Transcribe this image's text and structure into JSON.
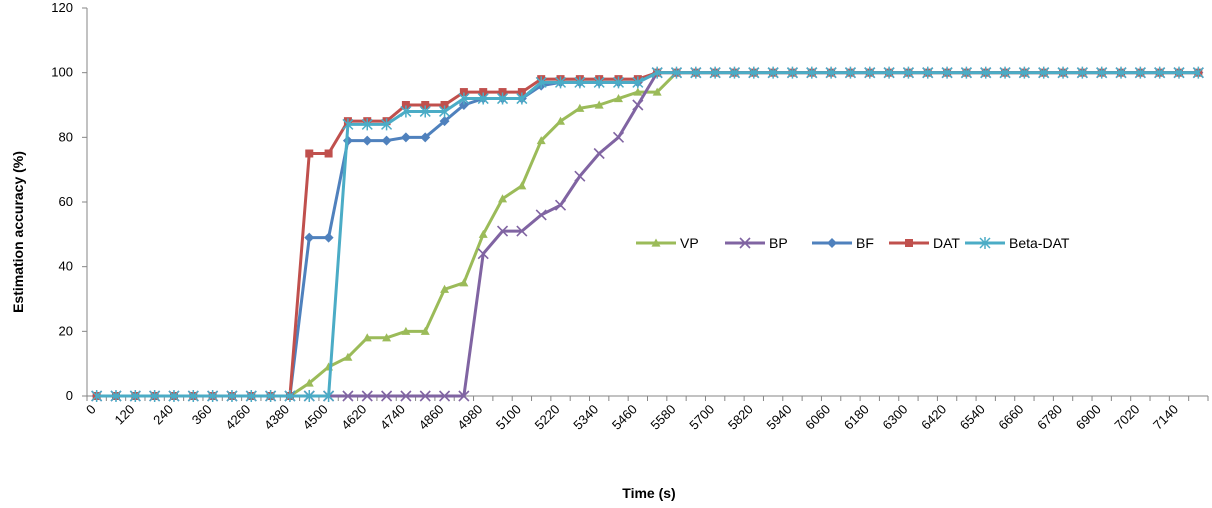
{
  "chart_data": {
    "type": "line",
    "xlabel": "Time (s)",
    "ylabel": "Estimation  accuracy (%)",
    "ylim": [
      0,
      120
    ],
    "yticks": [
      "0",
      "20",
      "40",
      "60",
      "80",
      "100",
      "120"
    ],
    "grid": false,
    "legend_position": "center-right",
    "categories": [
      "0",
      "60",
      "120",
      "180",
      "240",
      "300",
      "360",
      "4200",
      "4260",
      "4320",
      "4380",
      "4440",
      "4500",
      "4560",
      "4620",
      "4680",
      "4740",
      "4800",
      "4860",
      "4920",
      "4980",
      "5040",
      "5100",
      "5160",
      "5220",
      "5280",
      "5340",
      "5400",
      "5460",
      "5520",
      "5580",
      "5640",
      "5700",
      "5760",
      "5820",
      "5880",
      "5940",
      "6000",
      "6060",
      "6120",
      "6180",
      "6240",
      "6300",
      "6360",
      "6420",
      "6480",
      "6540",
      "6600",
      "6660",
      "6720",
      "6780",
      "6840",
      "6900",
      "6960",
      "7020",
      "7080",
      "7140",
      "7200"
    ],
    "x_tick_labels": [
      "0",
      "120",
      "240",
      "360",
      "4260",
      "4380",
      "4500",
      "4620",
      "4740",
      "4860",
      "4980",
      "5100",
      "5220",
      "5340",
      "5460",
      "5580",
      "5700",
      "5820",
      "5940",
      "6060",
      "6180",
      "6300",
      "6420",
      "6540",
      "6660",
      "6780",
      "6900",
      "7020",
      "7140"
    ],
    "series": [
      {
        "name": "VP",
        "color": "#9BBB59",
        "marker": "triangle",
        "values": [
          0,
          0,
          0,
          0,
          0,
          0,
          0,
          0,
          0,
          0,
          0,
          4,
          9,
          12,
          18,
          18,
          20,
          20,
          33,
          35,
          50,
          61,
          65,
          79,
          85,
          89,
          90,
          92,
          94,
          94,
          100,
          100,
          100,
          100,
          100,
          100,
          100,
          100,
          100,
          100,
          100,
          100,
          100,
          100,
          100,
          100,
          100,
          100,
          100,
          100,
          100,
          100,
          100,
          100,
          100,
          100,
          100,
          100
        ]
      },
      {
        "name": "BP",
        "color": "#8064A2",
        "marker": "x",
        "values": [
          0,
          0,
          0,
          0,
          0,
          0,
          0,
          0,
          0,
          0,
          0,
          0,
          0,
          0,
          0,
          0,
          0,
          0,
          0,
          0,
          44,
          51,
          51,
          56,
          59,
          68,
          75,
          80,
          90,
          100,
          100,
          100,
          100,
          100,
          100,
          100,
          100,
          100,
          100,
          100,
          100,
          100,
          100,
          100,
          100,
          100,
          100,
          100,
          100,
          100,
          100,
          100,
          100,
          100,
          100,
          100,
          100,
          100
        ]
      },
      {
        "name": "BF",
        "color": "#4F81BD",
        "marker": "diamond",
        "values": [
          0,
          0,
          0,
          0,
          0,
          0,
          0,
          0,
          0,
          0,
          0,
          49,
          49,
          79,
          79,
          79,
          80,
          80,
          85,
          90,
          92,
          92,
          92,
          96,
          97,
          97,
          97,
          97,
          97,
          100,
          100,
          100,
          100,
          100,
          100,
          100,
          100,
          100,
          100,
          100,
          100,
          100,
          100,
          100,
          100,
          100,
          100,
          100,
          100,
          100,
          100,
          100,
          100,
          100,
          100,
          100,
          100,
          100
        ]
      },
      {
        "name": "DAT",
        "color": "#C0504D",
        "marker": "square",
        "values": [
          0,
          0,
          0,
          0,
          0,
          0,
          0,
          0,
          0,
          0,
          0,
          75,
          75,
          85,
          85,
          85,
          90,
          90,
          90,
          94,
          94,
          94,
          94,
          98,
          98,
          98,
          98,
          98,
          98,
          100,
          100,
          100,
          100,
          100,
          100,
          100,
          100,
          100,
          100,
          100,
          100,
          100,
          100,
          100,
          100,
          100,
          100,
          100,
          100,
          100,
          100,
          100,
          100,
          100,
          100,
          100,
          100,
          100
        ]
      },
      {
        "name": "Beta-DAT",
        "color": "#4BACC6",
        "marker": "star",
        "values": [
          0,
          0,
          0,
          0,
          0,
          0,
          0,
          0,
          0,
          0,
          0,
          0,
          0,
          84,
          84,
          84,
          88,
          88,
          88,
          92,
          92,
          92,
          92,
          97,
          97,
          97,
          97,
          97,
          97,
          100,
          100,
          100,
          100,
          100,
          100,
          100,
          100,
          100,
          100,
          100,
          100,
          100,
          100,
          100,
          100,
          100,
          100,
          100,
          100,
          100,
          100,
          100,
          100,
          100,
          100,
          100,
          100,
          100
        ]
      }
    ]
  }
}
